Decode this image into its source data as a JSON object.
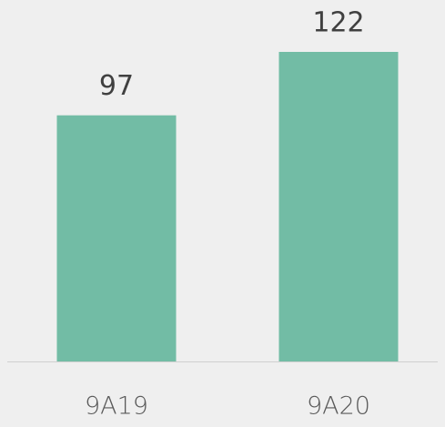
{
  "chart_data": {
    "type": "bar",
    "categories": [
      "9A19",
      "9A20"
    ],
    "values": [
      97,
      122
    ],
    "color": "#72bca5"
  }
}
